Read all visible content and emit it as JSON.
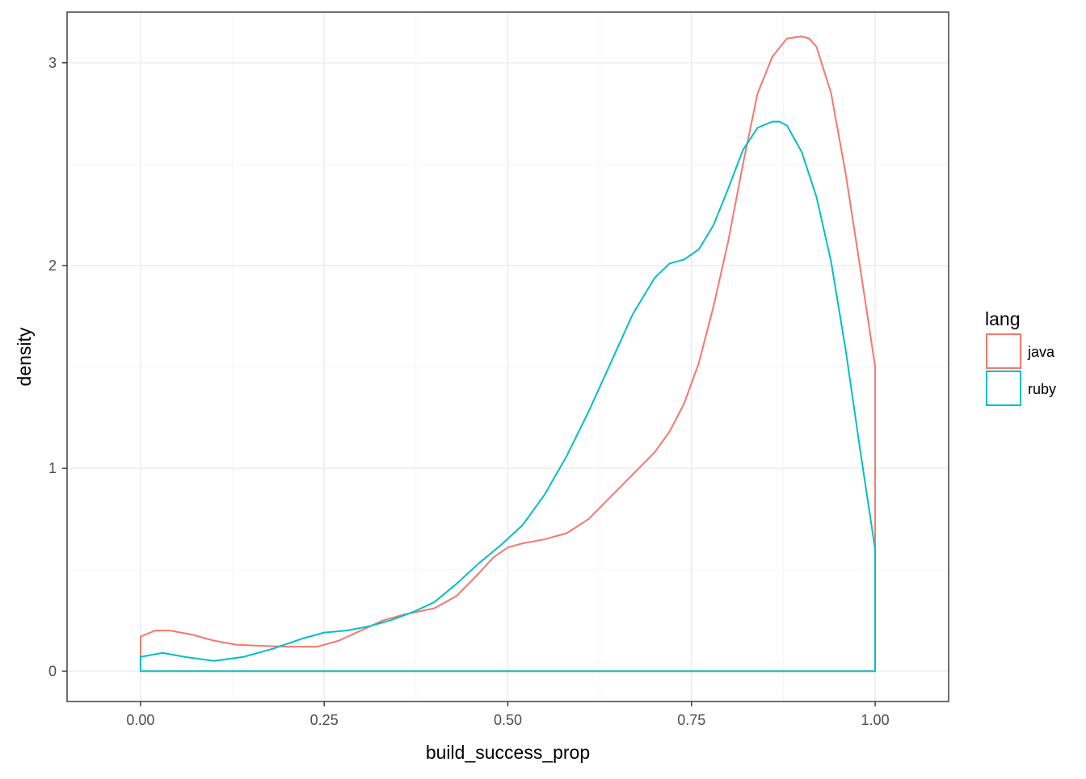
{
  "chart_data": {
    "type": "area",
    "subtype": "density",
    "title": "",
    "xlabel": "build_success_prop",
    "ylabel": "density",
    "xlim": [
      -0.1,
      1.1
    ],
    "ylim": [
      -0.15,
      3.25
    ],
    "x_ticks": [
      0,
      0.25,
      0.5,
      0.75,
      1
    ],
    "x_tick_labels": [
      "0.00",
      "0.25",
      "0.50",
      "0.75",
      "1.00"
    ],
    "y_ticks": [
      0,
      1,
      2,
      3
    ],
    "y_tick_labels": [
      "0",
      "1",
      "2",
      "3"
    ],
    "grid": true,
    "legend": {
      "title": "lang",
      "position": "right"
    },
    "series": [
      {
        "name": "java",
        "color": "#F8766D",
        "x": [
          0,
          0.02,
          0.04,
          0.07,
          0.1,
          0.13,
          0.16,
          0.2,
          0.24,
          0.27,
          0.3,
          0.33,
          0.36,
          0.4,
          0.43,
          0.46,
          0.48,
          0.5,
          0.52,
          0.55,
          0.58,
          0.61,
          0.64,
          0.67,
          0.7,
          0.72,
          0.74,
          0.76,
          0.78,
          0.8,
          0.82,
          0.84,
          0.86,
          0.88,
          0.9,
          0.91,
          0.92,
          0.94,
          0.96,
          0.98,
          1.0
        ],
        "y": [
          0.17,
          0.2,
          0.2,
          0.18,
          0.15,
          0.13,
          0.125,
          0.12,
          0.12,
          0.15,
          0.2,
          0.25,
          0.28,
          0.31,
          0.37,
          0.48,
          0.56,
          0.61,
          0.63,
          0.65,
          0.68,
          0.75,
          0.86,
          0.97,
          1.08,
          1.18,
          1.32,
          1.52,
          1.8,
          2.12,
          2.5,
          2.85,
          3.03,
          3.12,
          3.13,
          3.12,
          3.08,
          2.85,
          2.45,
          1.98,
          1.5
        ]
      },
      {
        "name": "ruby",
        "color": "#00BFC4",
        "x": [
          0,
          0.03,
          0.06,
          0.1,
          0.14,
          0.18,
          0.22,
          0.25,
          0.28,
          0.31,
          0.34,
          0.37,
          0.4,
          0.43,
          0.46,
          0.49,
          0.52,
          0.55,
          0.58,
          0.61,
          0.64,
          0.67,
          0.7,
          0.72,
          0.74,
          0.76,
          0.78,
          0.8,
          0.82,
          0.84,
          0.86,
          0.87,
          0.88,
          0.9,
          0.92,
          0.94,
          0.96,
          0.98,
          1.0
        ],
        "y": [
          0.07,
          0.09,
          0.07,
          0.05,
          0.07,
          0.11,
          0.16,
          0.19,
          0.2,
          0.22,
          0.25,
          0.29,
          0.34,
          0.43,
          0.53,
          0.62,
          0.72,
          0.87,
          1.06,
          1.28,
          1.52,
          1.76,
          1.94,
          2.01,
          2.03,
          2.08,
          2.2,
          2.38,
          2.57,
          2.68,
          2.71,
          2.71,
          2.69,
          2.56,
          2.34,
          2.02,
          1.58,
          1.08,
          0.6
        ]
      }
    ]
  }
}
